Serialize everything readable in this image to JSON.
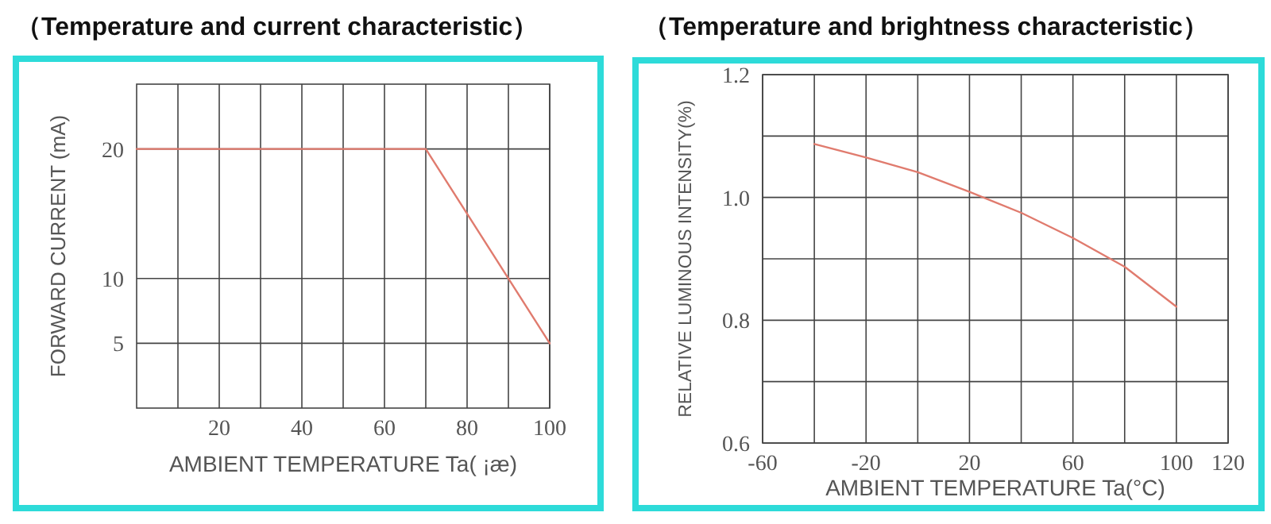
{
  "chart_data": [
    {
      "type": "line",
      "title": "（Temperature and current characteristic）",
      "xlabel": "AMBIENT TEMPERATURE Ta( ¡æ)",
      "ylabel": "FORWARD CURRENT (mA)",
      "x": [
        0,
        70,
        100
      ],
      "series": [
        {
          "color": "#e07b6e",
          "values": [
            20,
            20,
            5
          ]
        }
      ],
      "xlim": [
        0,
        100
      ],
      "xticks": [
        {
          "value": 10,
          "label": null
        },
        20,
        {
          "value": 30,
          "label": null
        },
        40,
        {
          "value": 50,
          "label": null
        },
        60,
        {
          "value": 70,
          "label": null
        },
        80,
        {
          "value": 90,
          "label": null
        },
        100
      ],
      "ylim": [
        0,
        25
      ],
      "yticks": [
        5,
        10,
        20
      ],
      "grid": true,
      "marker": "none",
      "line_style": "solid"
    },
    {
      "type": "line",
      "title": "（Temperature and brightness characteristic）",
      "xlabel": "AMBIENT TEMPERATURE Ta(°C)",
      "ylabel": "RELATIVE LUMINOUS INTENSITY(%)",
      "x": [
        -40,
        -20,
        0,
        20,
        40,
        60,
        80,
        100
      ],
      "series": [
        {
          "color": "#e07b6e",
          "values": [
            1.087,
            1.065,
            1.041,
            1.009,
            0.975,
            0.934,
            0.887,
            0.822
          ]
        }
      ],
      "xlim": [
        -60,
        120
      ],
      "xticks": [
        -60,
        {
          "value": -40,
          "label": null
        },
        -20,
        {
          "value": 0,
          "label": null
        },
        20,
        {
          "value": 40,
          "label": null
        },
        60,
        {
          "value": 80,
          "label": null
        },
        100,
        120
      ],
      "ylim": [
        0.6,
        1.2
      ],
      "yticks": [
        0.6,
        {
          "value": 0.7,
          "label": null
        },
        0.8,
        {
          "value": 0.9,
          "label": null
        },
        {
          "value": 1.0,
          "label": "1.0"
        },
        {
          "value": 1.1,
          "label": null
        },
        1.2
      ],
      "grid": true,
      "marker": "none",
      "line_style": "solid"
    }
  ]
}
